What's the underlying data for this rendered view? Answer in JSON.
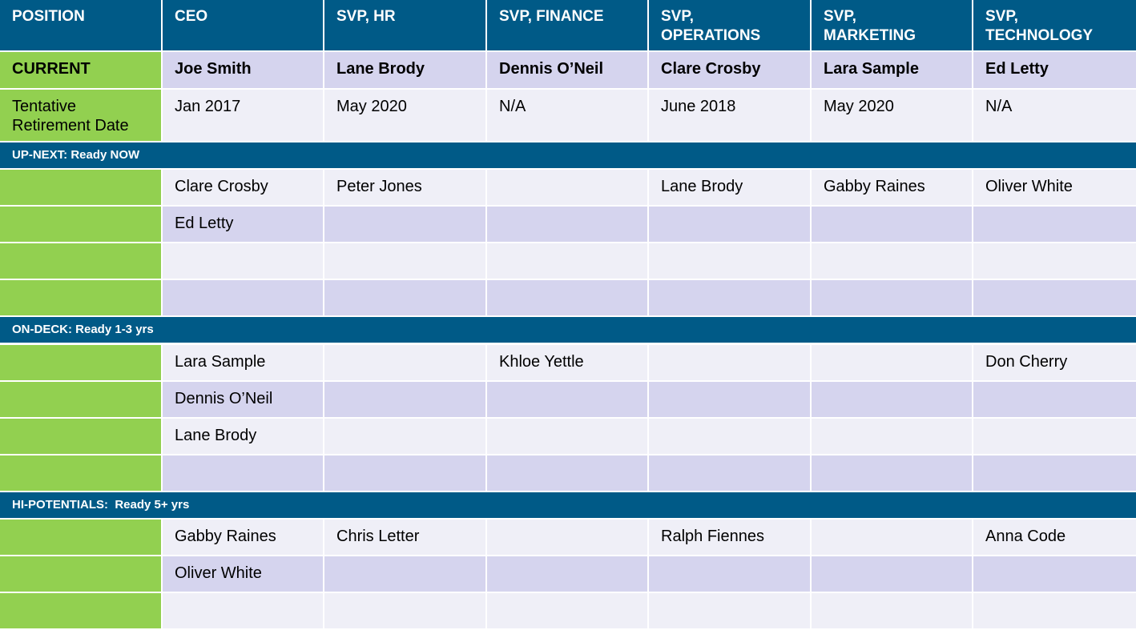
{
  "header": {
    "position_label": "POSITION",
    "columns": [
      "CEO",
      "SVP, HR",
      "SVP, FINANCE",
      "SVP,\nOPERATIONS",
      "SVP,\nMARKETING",
      "SVP,\nTECHNOLOGY"
    ]
  },
  "current": {
    "label": "CURRENT",
    "values": [
      "Joe Smith",
      "Lane Brody",
      "Dennis O’Neil",
      "Clare Crosby",
      "Lara Sample",
      "Ed Letty"
    ]
  },
  "retirement": {
    "label": "Tentative\nRetirement Date",
    "values": [
      "Jan 2017",
      "May 2020",
      "N/A",
      "June 2018",
      "May 2020",
      "N/A"
    ]
  },
  "sections": [
    {
      "title": "UP-NEXT: Ready NOW",
      "rows": [
        [
          "Clare Crosby",
          "Peter Jones",
          "",
          "Lane Brody",
          "Gabby Raines",
          "Oliver White"
        ],
        [
          "Ed Letty",
          "",
          "",
          "",
          "",
          ""
        ],
        [
          "",
          "",
          "",
          "",
          "",
          ""
        ],
        [
          "",
          "",
          "",
          "",
          "",
          ""
        ]
      ]
    },
    {
      "title": "ON-DECK: Ready 1-3 yrs",
      "rows": [
        [
          "Lara Sample",
          "",
          "Khloe Yettle",
          "",
          "",
          "Don Cherry"
        ],
        [
          "Dennis O’Neil",
          "",
          "",
          "",
          "",
          ""
        ],
        [
          "Lane Brody",
          "",
          "",
          "",
          "",
          ""
        ],
        [
          "",
          "",
          "",
          "",
          "",
          ""
        ]
      ]
    },
    {
      "title": "HI-POTENTIALS:  Ready 5+ yrs",
      "rows": [
        [
          "Gabby Raines",
          "Chris Letter",
          "",
          "Ralph Fiennes",
          "",
          "Anna Code"
        ],
        [
          "Oliver White",
          "",
          "",
          "",
          "",
          ""
        ],
        [
          "",
          "",
          "",
          "",
          "",
          ""
        ]
      ]
    }
  ]
}
